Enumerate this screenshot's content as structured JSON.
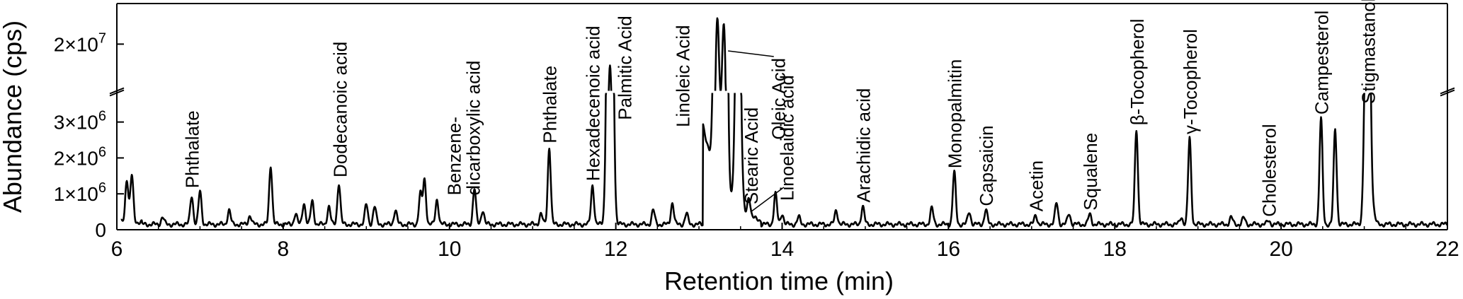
{
  "chart_data": {
    "type": "line",
    "title": "",
    "xlabel": "Retention time (min)",
    "ylabel": "Abundance (cps)",
    "xlim": [
      6,
      22
    ],
    "ylim_lower": [
      0,
      3800000
    ],
    "ylim_upper": [
      16000000,
      23500000
    ],
    "axis_break": true,
    "grid": false,
    "x_ticks": [
      {
        "value": 6,
        "label": "6"
      },
      {
        "value": 8,
        "label": "8"
      },
      {
        "value": 10,
        "label": "10"
      },
      {
        "value": 12,
        "label": "12"
      },
      {
        "value": 14,
        "label": "14"
      },
      {
        "value": 16,
        "label": "16"
      },
      {
        "value": 18,
        "label": "18"
      },
      {
        "value": 20,
        "label": "20"
      },
      {
        "value": 22,
        "label": "22"
      }
    ],
    "y_ticks_lower": [
      {
        "value": 0,
        "base": "0",
        "exp": ""
      },
      {
        "value": 1000000,
        "base": "1×10",
        "exp": "6"
      },
      {
        "value": 2000000,
        "base": "2×10",
        "exp": "6"
      },
      {
        "value": 3000000,
        "base": "3×10",
        "exp": "6"
      }
    ],
    "y_ticks_upper": [
      {
        "value": 20000000,
        "base": "2×10",
        "exp": "7"
      }
    ],
    "baseline": 150000,
    "peaks": [
      {
        "rt": 6.12,
        "height": 1200000
      },
      {
        "rt": 6.18,
        "height": 1300000
      },
      {
        "rt": 6.55,
        "height": 200000
      },
      {
        "rt": 6.9,
        "height": 800000
      },
      {
        "rt": 7.0,
        "height": 920000
      },
      {
        "rt": 7.35,
        "height": 400000
      },
      {
        "rt": 7.6,
        "height": 250000
      },
      {
        "rt": 7.85,
        "height": 1650000
      },
      {
        "rt": 8.15,
        "height": 300000
      },
      {
        "rt": 8.25,
        "height": 600000
      },
      {
        "rt": 8.35,
        "height": 650000
      },
      {
        "rt": 8.55,
        "height": 500000
      },
      {
        "rt": 8.67,
        "height": 1150000
      },
      {
        "rt": 9.0,
        "height": 550000
      },
      {
        "rt": 9.1,
        "height": 500000
      },
      {
        "rt": 9.35,
        "height": 400000
      },
      {
        "rt": 9.65,
        "height": 850000
      },
      {
        "rt": 9.7,
        "height": 1250000
      },
      {
        "rt": 9.85,
        "height": 700000
      },
      {
        "rt": 10.3,
        "height": 1000000
      },
      {
        "rt": 10.4,
        "height": 400000
      },
      {
        "rt": 11.1,
        "height": 300000
      },
      {
        "rt": 11.2,
        "height": 2150000
      },
      {
        "rt": 11.72,
        "height": 1100000
      },
      {
        "rt": 11.93,
        "height": 18000000
      },
      {
        "rt": 12.45,
        "height": 400000
      },
      {
        "rt": 12.68,
        "height": 600000
      },
      {
        "rt": 12.85,
        "height": 300000
      },
      {
        "rt": 13.22,
        "height": 20500000
      },
      {
        "rt": 13.3,
        "height": 20300000
      },
      {
        "rt": 13.47,
        "height": 9000000
      },
      {
        "rt": 13.6,
        "height": 550000
      },
      {
        "rt": 13.92,
        "height": 850000
      },
      {
        "rt": 14.0,
        "height": 300000
      },
      {
        "rt": 14.2,
        "height": 200000
      },
      {
        "rt": 14.65,
        "height": 400000
      },
      {
        "rt": 14.97,
        "height": 500000
      },
      {
        "rt": 15.8,
        "height": 450000
      },
      {
        "rt": 16.07,
        "height": 1450000
      },
      {
        "rt": 16.25,
        "height": 350000
      },
      {
        "rt": 16.45,
        "height": 400000
      },
      {
        "rt": 17.05,
        "height": 250000
      },
      {
        "rt": 17.3,
        "height": 600000
      },
      {
        "rt": 17.45,
        "height": 300000
      },
      {
        "rt": 17.7,
        "height": 280000
      },
      {
        "rt": 18.26,
        "height": 2650000
      },
      {
        "rt": 18.8,
        "height": 200000
      },
      {
        "rt": 18.9,
        "height": 2400000
      },
      {
        "rt": 19.4,
        "height": 200000
      },
      {
        "rt": 19.55,
        "height": 180000
      },
      {
        "rt": 19.85,
        "height": 100000
      },
      {
        "rt": 20.48,
        "height": 2950000
      },
      {
        "rt": 20.65,
        "height": 2650000
      },
      {
        "rt": 21.04,
        "height": 11000000
      },
      {
        "rt": 21.12,
        "height": 200000
      }
    ],
    "annotations": [
      {
        "text": "Phthalate",
        "rt": 6.9,
        "y": 1000000
      },
      {
        "text": "Dodecanoic acid",
        "rt": 8.68,
        "y": 1300000
      },
      {
        "text": "Benzene-",
        "rt": 10.05,
        "y": 800000
      },
      {
        "text": "dicarboxylic acid",
        "rt": 10.28,
        "y": 800000
      },
      {
        "text": "Phthalate",
        "rt": 11.2,
        "y": 2250000
      },
      {
        "text": "Hexadecenoic acid",
        "rt": 11.72,
        "y": 1200000
      },
      {
        "text": "Palmitic Acid",
        "rt": 12.1,
        "y": 2900000
      },
      {
        "text": "Linoleic Acid",
        "rt": 12.8,
        "y": 2700000
      },
      {
        "text": "Oleic Acid",
        "rt": 13.95,
        "y": 2350000
      },
      {
        "text": "Stearic Acid",
        "rt": 13.62,
        "y": 550000
      },
      {
        "text": "Linoelaidic acid",
        "rt": 14.05,
        "y": 650000
      },
      {
        "text": "Arachidic acid",
        "rt": 14.97,
        "y": 600000
      },
      {
        "text": "Monopalmitin",
        "rt": 16.07,
        "y": 1550000
      },
      {
        "text": "Capsaicin",
        "rt": 16.45,
        "y": 500000
      },
      {
        "text": "Acetin",
        "rt": 17.05,
        "y": 350000
      },
      {
        "text": "Squalene",
        "rt": 17.7,
        "y": 380000
      },
      {
        "text": "β-Tocopherol",
        "rt": 18.26,
        "y": 2750000
      },
      {
        "text": "γ-Tocopherol",
        "rt": 18.9,
        "y": 2500000
      },
      {
        "text": "Cholesterol",
        "rt": 19.85,
        "y": 200000
      },
      {
        "text": "Campesterol",
        "rt": 20.48,
        "y": 3050000
      },
      {
        "text": "Stigmastanol",
        "rt": 21.04,
        "y": 3350000
      }
    ]
  }
}
